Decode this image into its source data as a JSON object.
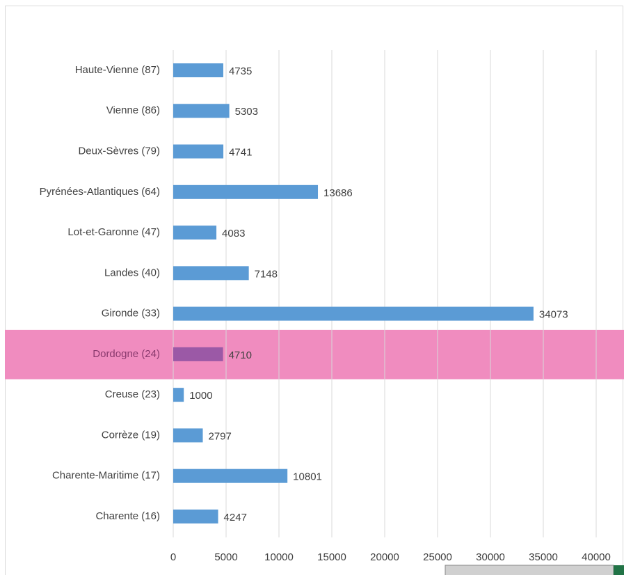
{
  "chart_data": {
    "type": "barh",
    "categories": [
      "Haute-Vienne (87)",
      "Vienne (86)",
      "Deux-Sèvres (79)",
      "Pyrénées-Atlantiques (64)",
      "Lot-et-Garonne (47)",
      "Landes (40)",
      "Gironde (33)",
      "Dordogne (24)",
      "Creuse (23)",
      "Corrèze (19)",
      "Charente-Maritime (17)",
      "Charente (16)"
    ],
    "values": [
      4735,
      5303,
      4741,
      13686,
      4083,
      7148,
      34073,
      4710,
      1000,
      2797,
      10801,
      4247
    ],
    "color": "#5b9bd5",
    "xlim": [
      0,
      40000
    ],
    "xticks": [
      0,
      5000,
      10000,
      15000,
      20000,
      25000,
      30000,
      35000,
      40000
    ],
    "grid": true,
    "highlight": {
      "index": 7,
      "color": "#f08cbf",
      "bar_color": "#9b59a6"
    }
  }
}
